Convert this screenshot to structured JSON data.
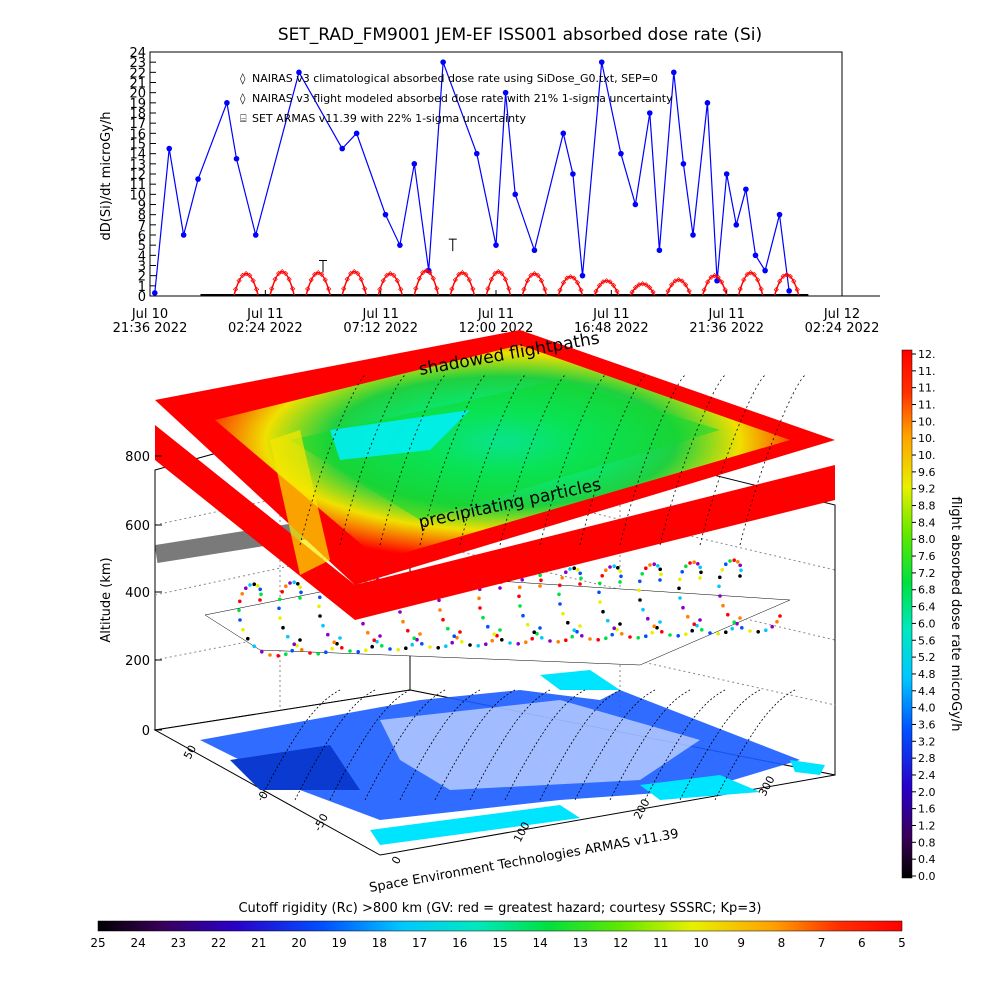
{
  "title": "SET_RAD_FM9001  JEM-EF ISS001 absorbed dose rate (Si)",
  "top_plot": {
    "ylabel": "dD(Si)/dt microGy/h",
    "y_ticks": [
      "0",
      "1",
      "2",
      "3",
      "4",
      "5",
      "6",
      "7",
      "8",
      "9",
      "10",
      "11",
      "12",
      "13",
      "14",
      "15",
      "16",
      "17",
      "18",
      "19",
      "20",
      "21",
      "22",
      "23",
      "24"
    ],
    "x_ticks": [
      {
        "line1": "Jul 10",
        "line2": "21:36 2022"
      },
      {
        "line1": "Jul 11",
        "line2": "02:24 2022"
      },
      {
        "line1": "Jul 11",
        "line2": "07:12 2022"
      },
      {
        "line1": "Jul 11",
        "line2": "12:00 2022"
      },
      {
        "line1": "Jul 11",
        "line2": "16:48 2022"
      },
      {
        "line1": "Jul 11",
        "line2": "21:36 2022"
      },
      {
        "line1": "Jul 12",
        "line2": "02:24 2022"
      }
    ],
    "legend": [
      {
        "marker": "◊",
        "color": "#ff0000",
        "text": "NAIRAS v3 climatological absorbed dose rate using SiDose_G0.txt, SEP=0"
      },
      {
        "marker": "◊",
        "color": "#000000",
        "text": "NAIRAS v3 flight modeled absorbed dose rate with 21% 1-sigma uncertainty"
      },
      {
        "marker": "⌸",
        "color": "#000000",
        "text": "SET ARMAS v11.39 with 22% 1-sigma uncertainty"
      }
    ]
  },
  "chart_data": [
    {
      "type": "line",
      "title": "SET_RAD_FM9001  JEM-EF ISS001 absorbed dose rate (Si)",
      "xlabel": "",
      "ylabel": "dD(Si)/dt microGy/h",
      "ylim": [
        0,
        24
      ],
      "xlim": [
        "Jul 10 21:36 2022",
        "Jul 12 02:24 2022"
      ],
      "x_unit": "hours after Jul 10 21:36 2022",
      "series": [
        {
          "name": "NAIRAS v3 climatological absorbed dose rate using SiDose_G0.txt, SEP=0",
          "color": "#ff0000",
          "x": [
            4.0,
            5.5,
            7.0,
            8.5,
            10.0,
            11.5,
            13.0,
            14.5,
            16.0,
            17.5,
            19.0,
            20.5,
            22.0,
            23.5,
            25.0,
            26.5
          ],
          "values": [
            2.2,
            2.4,
            2.3,
            2.4,
            2.2,
            2.5,
            2.3,
            2.4,
            2.2,
            1.9,
            1.5,
            1.2,
            1.6,
            2.0,
            2.3,
            2.1
          ]
        },
        {
          "name": "SET ARMAS v11.39 with 22% 1-sigma uncertainty",
          "color": "#0000ff",
          "x": [
            0.2,
            0.8,
            1.4,
            2.0,
            3.2,
            3.6,
            4.4,
            6.2,
            8.0,
            8.6,
            9.8,
            10.4,
            11.0,
            11.6,
            12.2,
            13.6,
            14.4,
            14.8,
            15.2,
            16.0,
            17.2,
            17.6,
            18.0,
            18.8,
            19.6,
            20.2,
            20.8,
            21.2,
            21.8,
            22.2,
            22.6,
            23.2,
            23.6,
            24.0,
            24.4,
            24.8,
            25.2,
            25.6,
            26.2,
            26.6
          ],
          "values": [
            0.3,
            14.5,
            6.0,
            11.5,
            19.0,
            13.5,
            6.0,
            22.0,
            14.5,
            16.0,
            8.0,
            5.0,
            13.0,
            2.5,
            23.0,
            14.0,
            5.0,
            20.0,
            10.0,
            4.5,
            16.0,
            12.0,
            2.0,
            23.0,
            14.0,
            9.0,
            18.0,
            4.5,
            22.0,
            13.0,
            6.0,
            19.0,
            1.5,
            12.0,
            7.0,
            10.5,
            4.0,
            2.5,
            8.0,
            0.5
          ]
        }
      ]
    },
    {
      "type": "heatmap",
      "title": "",
      "xlabel": "",
      "ylabel": "Altitude (km)",
      "z_ticks": [
        "0",
        "200",
        "400",
        "600",
        "800"
      ],
      "lon_ticks": [
        "0",
        "100",
        "200",
        "300"
      ],
      "lat_ticks": [
        "-50",
        "0",
        "50"
      ],
      "colorbar_label": "flight absorbed dose rate microGy/h",
      "colorbar_range": [
        0.0,
        12.0
      ],
      "colorbar_ticks": [
        "12.",
        "11.",
        "11.",
        "11.",
        "10.",
        "10.",
        "10.",
        "9.6",
        "9.2",
        "8.8",
        "8.4",
        "8.0",
        "7.6",
        "7.2",
        "6.8",
        "6.4",
        "6.0",
        "5.6",
        "5.2",
        "4.8",
        "4.4",
        "4.0",
        "3.6",
        "3.2",
        "2.8",
        "2.4",
        "2.0",
        "1.6",
        "1.2",
        "0.8",
        "0.4",
        "0.0"
      ],
      "cutoff_rigidity_bar": {
        "label": "Cutoff rigidity (Rc) >800 km (GV: red = greatest hazard; courtesy SSSRC; Kp=3)",
        "ticks": [
          "25",
          "24",
          "23",
          "22",
          "21",
          "20",
          "19",
          "18",
          "17",
          "16",
          "15",
          "14",
          "13",
          "12",
          "11",
          "10",
          "9",
          "8",
          "7",
          "6",
          "5"
        ]
      },
      "annotations": [
        "shadowed flightpaths",
        "precipitating particles"
      ]
    }
  ],
  "plot3d": {
    "ylabel": "Altitude (km)",
    "shadowed_label": "shadowed flightpaths",
    "precip_label": "precipitating particles",
    "footer": "Space Environment Technologies ARMAS v11.39"
  },
  "colorbar": {
    "label": "flight absorbed dose rate microGy/h"
  },
  "rigidity_bar": {
    "label": "Cutoff rigidity (Rc) >800 km (GV: red = greatest hazard; courtesy SSSRC; Kp=3)"
  },
  "colors": {
    "armas": "#0000ff",
    "nairas_clim": "#ff0000",
    "ocean": "#00e5ff",
    "land": "#1a5cff"
  }
}
